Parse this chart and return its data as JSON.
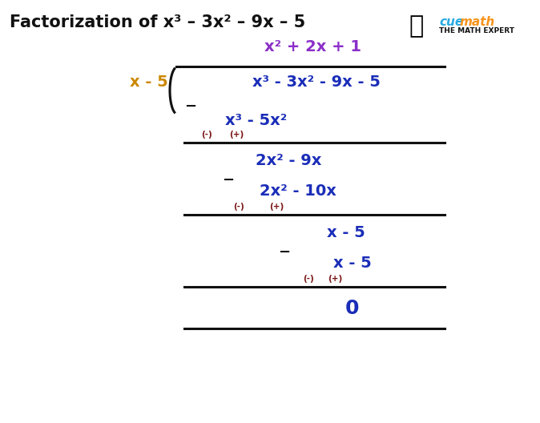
{
  "title": "Factorization of x³ – 3x² – 9x – 5",
  "title_color": "#1a1a1a",
  "background_color": "#ffffff",
  "purple_color": "#8B2FC9",
  "orange_color": "#CC8800",
  "blue_color": "#1a2db8",
  "dark_red_color": "#7a1515",
  "black_color": "#111111",
  "cue_color": "#29ABE2",
  "math_color": "#F7941D",
  "quotient": "x² + 2x + 1",
  "divisor": "x - 5",
  "dividend": "x³ - 3x² - 9x - 5",
  "step1_sub": "x³ - 5x²",
  "step2_result": "2x² - 9x",
  "step2_sub": "2x² - 10x",
  "step3_result": "x - 5",
  "step3_sub": "x - 5",
  "final_result": "0",
  "fs_title": 15,
  "fs_main": 13,
  "fs_small": 7.5,
  "fs_logo": 11,
  "fs_logo_sub": 6.5
}
